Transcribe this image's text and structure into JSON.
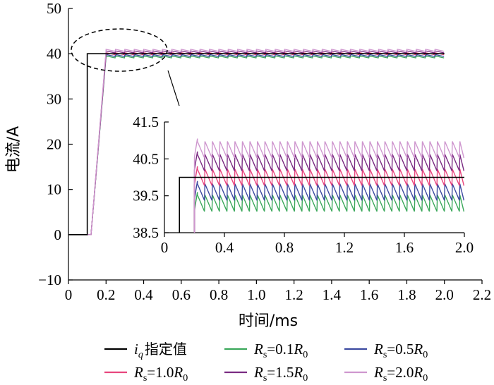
{
  "chart_data": [
    {
      "type": "line",
      "xlabel": "时间/ms",
      "ylabel": "电流/A",
      "xlim": [
        0,
        2.2
      ],
      "ylim": [
        -10,
        50
      ],
      "xticks": [
        0,
        0.2,
        0.4,
        0.6,
        0.8,
        1.0,
        1.2,
        1.4,
        1.6,
        1.8,
        2.0,
        2.2
      ],
      "xtick_labels": [
        "0",
        "0.2",
        "0.4",
        "0.6",
        "0.8",
        "1.0",
        "1.2",
        "1.4",
        "1.6",
        "1.8",
        "2.0",
        "2.2"
      ],
      "yticks": [
        -10,
        0,
        10,
        20,
        30,
        40,
        50
      ],
      "ytick_labels": [
        "−10",
        "0",
        "10",
        "20",
        "30",
        "40",
        "50"
      ],
      "grid": false,
      "reference": {
        "x": [
          0,
          0.1,
          0.1,
          2.0
        ],
        "y": [
          0,
          0,
          40,
          40
        ]
      },
      "rise": {
        "x": [
          0.12,
          0.2
        ],
        "y": [
          0,
          39
        ]
      },
      "series": [
        {
          "name": "R_s=0.1R_0",
          "color": "#3aa85a",
          "center": 39.3,
          "ripple": 0.45,
          "x": [
            0.12,
            0.2,
            2.0
          ],
          "y": [
            0,
            39.3,
            39.3
          ]
        },
        {
          "name": "R_s=0.5R_0",
          "color": "#3c4aa0",
          "center": 39.6,
          "ripple": 0.45,
          "x": [
            0.12,
            0.2,
            2.0
          ],
          "y": [
            0,
            39.6,
            39.6
          ]
        },
        {
          "name": "R_s=1.0R_0",
          "color": "#e8467e",
          "center": 40.0,
          "ripple": 0.45,
          "x": [
            0.12,
            0.2,
            2.0
          ],
          "y": [
            0,
            40.0,
            40.0
          ]
        },
        {
          "name": "R_s=1.5R_0",
          "color": "#7a2b82",
          "center": 40.4,
          "ripple": 0.45,
          "x": [
            0.12,
            0.2,
            2.0
          ],
          "y": [
            0,
            40.4,
            40.4
          ]
        },
        {
          "name": "R_s=2.0R_0",
          "color": "#cf97cf",
          "center": 40.75,
          "ripple": 0.45,
          "x": [
            0.12,
            0.2,
            2.0
          ],
          "y": [
            0,
            40.75,
            40.75
          ]
        }
      ],
      "ripple_period_ms": 0.05
    },
    {
      "type": "line",
      "xlim": [
        0,
        2.0
      ],
      "ylim": [
        38.5,
        41.5
      ],
      "xticks": [
        0,
        0.4,
        0.8,
        1.2,
        1.6,
        2.0
      ],
      "xtick_labels": [
        "0",
        "0.4",
        "0.8",
        "1.2",
        "1.6",
        "2.0"
      ],
      "yticks": [
        38.5,
        39.5,
        40.5,
        41.5
      ],
      "ytick_labels": [
        "38.5",
        "39.5",
        "40.5",
        "41.5"
      ],
      "grid": false
    }
  ],
  "legend": {
    "placement": "bottom",
    "items": [
      {
        "label": "指定值",
        "sub": "q",
        "color": "#000000"
      },
      {
        "label": "=0.1",
        "sub": "s",
        "sub2": "0",
        "color": "#3aa85a"
      },
      {
        "label": "=0.5",
        "sub": "s",
        "sub2": "0",
        "color": "#3c4aa0"
      },
      {
        "label": "=1.0",
        "sub": "s",
        "sub2": "0",
        "color": "#e8467e"
      },
      {
        "label": "=1.5",
        "sub": "s",
        "sub2": "0",
        "color": "#7a2b82"
      },
      {
        "label": "=2.0",
        "sub": "s",
        "sub2": "0",
        "color": "#cf97cf"
      }
    ]
  }
}
